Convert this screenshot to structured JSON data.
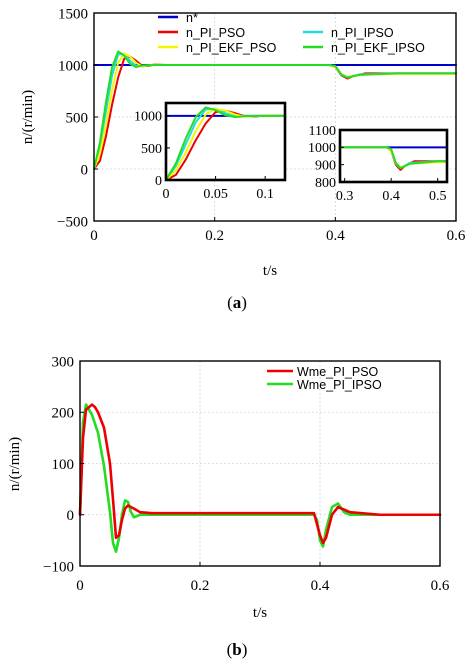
{
  "panels": [
    {
      "caption": "(a)",
      "caption_letter": "a",
      "xlabel": "t/s",
      "ylabel": "n/(r/min)",
      "chart_data": {
        "type": "line",
        "xlim": [
          0,
          0.6
        ],
        "ylim": [
          -500,
          1500
        ],
        "x_ticks": [
          0,
          0.2,
          0.4,
          0.6
        ],
        "x_tick_labels": [
          "0",
          "0.2",
          "0.4",
          "0.6"
        ],
        "y_ticks": [
          -500,
          0,
          500,
          1000,
          1500
        ],
        "y_tick_labels": [
          "−500",
          "0",
          "500",
          "1000",
          "1500"
        ],
        "legend": {
          "placement": "top",
          "columns": 2
        },
        "series": [
          {
            "name": "n*",
            "color": "#0000cc",
            "x": [
              0,
              0.6
            ],
            "y": [
              1000,
              1000
            ]
          },
          {
            "name": "n_PI_PSO",
            "color": "#ee0000",
            "x": [
              0,
              0.01,
              0.02,
              0.03,
              0.04,
              0.05,
              0.06,
              0.07,
              0.08,
              0.09,
              0.1,
              0.12,
              0.15,
              0.2,
              0.3,
              0.39,
              0.4,
              0.41,
              0.42,
              0.43,
              0.45,
              0.5,
              0.6
            ],
            "y": [
              0,
              80,
              320,
              620,
              880,
              1060,
              1080,
              1040,
              990,
              990,
              1005,
              1000,
              1000,
              1000,
              1000,
              1000,
              980,
              900,
              870,
              895,
              920,
              920,
              920
            ]
          },
          {
            "name": "n_PI_IPSO",
            "color": "#22dddd",
            "x": [
              0,
              0.01,
              0.02,
              0.03,
              0.04,
              0.05,
              0.06,
              0.07,
              0.08,
              0.1,
              0.12,
              0.2,
              0.39,
              0.4,
              0.41,
              0.42,
              0.44,
              0.5,
              0.6
            ],
            "y": [
              0,
              220,
              560,
              900,
              1100,
              1110,
              1040,
              990,
              995,
              1000,
              1000,
              1000,
              1000,
              985,
              905,
              880,
              910,
              920,
              920
            ]
          },
          {
            "name": "n_PI_EKF_PSO",
            "color": "#f5f500",
            "x": [
              0,
              0.01,
              0.02,
              0.03,
              0.04,
              0.05,
              0.06,
              0.07,
              0.08,
              0.09,
              0.1,
              0.12,
              0.2,
              0.39,
              0.4,
              0.41,
              0.42,
              0.44,
              0.5,
              0.6
            ],
            "y": [
              0,
              150,
              430,
              760,
              1020,
              1110,
              1080,
              1020,
              985,
              995,
              1003,
              1000,
              1000,
              1000,
              980,
              910,
              885,
              905,
              915,
              915
            ]
          },
          {
            "name": "n_PI_EKF_IPSO",
            "color": "#22dd22",
            "x": [
              0,
              0.01,
              0.02,
              0.03,
              0.04,
              0.05,
              0.06,
              0.07,
              0.08,
              0.1,
              0.12,
              0.2,
              0.39,
              0.4,
              0.41,
              0.42,
              0.44,
              0.5,
              0.6
            ],
            "y": [
              0,
              260,
              650,
              980,
              1130,
              1090,
              1010,
              980,
              995,
              1000,
              1000,
              1000,
              1000,
              990,
              910,
              880,
              905,
              920,
              920
            ]
          }
        ],
        "insets": [
          {
            "xlim": [
              0,
              0.12
            ],
            "ylim": [
              0,
              1200
            ],
            "x_ticks": [
              0,
              0.05,
              0.1
            ],
            "x_tick_labels": [
              "0",
              "0.05",
              "0.1"
            ],
            "y_ticks": [
              0,
              500,
              1000
            ],
            "y_tick_labels": [
              "0",
              "500",
              "1000"
            ]
          },
          {
            "xlim": [
              0.29,
              0.52
            ],
            "ylim": [
              800,
              1100
            ],
            "x_ticks": [
              0.3,
              0.4,
              0.5
            ],
            "x_tick_labels": [
              "0.3",
              "0.4",
              "0.5"
            ],
            "y_ticks": [
              800,
              900,
              1000,
              1100
            ],
            "y_tick_labels": [
              "800",
              "900",
              "1000",
              "1100"
            ]
          }
        ]
      }
    },
    {
      "caption": "(b)",
      "caption_letter": "b",
      "xlabel": "t/s",
      "ylabel": "n/(r/min)",
      "chart_data": {
        "type": "line",
        "xlim": [
          0,
          0.6
        ],
        "ylim": [
          -100,
          300
        ],
        "x_ticks": [
          0,
          0.2,
          0.4,
          0.6
        ],
        "x_tick_labels": [
          "0",
          "0.2",
          "0.4",
          "0.6"
        ],
        "y_ticks": [
          -100,
          0,
          100,
          200,
          300
        ],
        "y_tick_labels": [
          "−100",
          "0",
          "100",
          "200",
          "300"
        ],
        "legend": {
          "placement": "top-right",
          "columns": 1
        },
        "series": [
          {
            "name": "Wme_PI_IPSO",
            "color": "#22dd22",
            "x": [
              0,
              0.005,
              0.01,
              0.02,
              0.03,
              0.04,
              0.05,
              0.055,
              0.06,
              0.065,
              0.07,
              0.075,
              0.08,
              0.085,
              0.09,
              0.1,
              0.12,
              0.2,
              0.39,
              0.395,
              0.4,
              0.405,
              0.41,
              0.42,
              0.43,
              0.44,
              0.45,
              0.5,
              0.6
            ],
            "y": [
              0,
              180,
              215,
              195,
              160,
              95,
              5,
              -55,
              -72,
              -45,
              0,
              28,
              25,
              5,
              -5,
              0,
              0,
              0,
              0,
              -10,
              -50,
              -62,
              -30,
              15,
              22,
              5,
              0,
              0,
              0
            ]
          },
          {
            "name": "Wme_PI_PSO",
            "color": "#ee0000",
            "x": [
              0,
              0.005,
              0.01,
              0.02,
              0.025,
              0.03,
              0.04,
              0.05,
              0.055,
              0.06,
              0.065,
              0.07,
              0.075,
              0.08,
              0.09,
              0.1,
              0.12,
              0.2,
              0.39,
              0.4,
              0.405,
              0.41,
              0.42,
              0.43,
              0.44,
              0.45,
              0.5,
              0.6
            ],
            "y": [
              0,
              150,
              205,
              215,
              210,
              200,
              170,
              100,
              30,
              -45,
              -40,
              -10,
              12,
              18,
              12,
              5,
              3,
              3,
              3,
              -40,
              -55,
              -45,
              0,
              15,
              10,
              5,
              0,
              0
            ]
          }
        ]
      }
    }
  ]
}
